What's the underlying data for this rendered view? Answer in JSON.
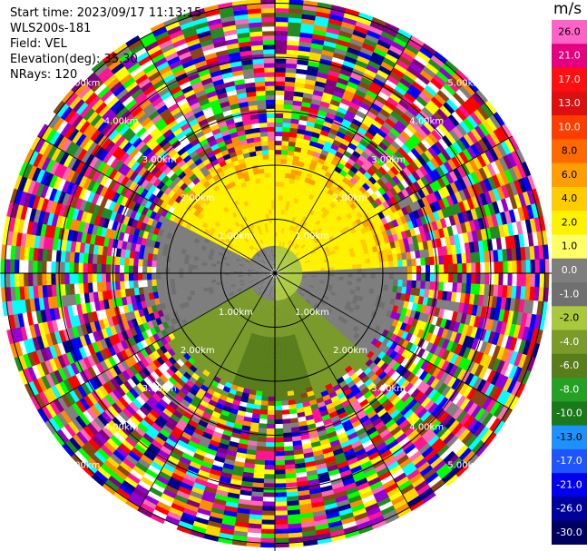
{
  "header": {
    "start_time": "Start time: 2023/09/17 11:13:15",
    "instrument": "WLS200s-181",
    "field": "Field: VEL",
    "elevation": "Elevation(deg): 35.30",
    "nrays": "NRays: 120"
  },
  "chart_data": {
    "type": "heatmap",
    "projection": "polar-ppi",
    "field": "VEL",
    "unit": "m/s",
    "range_ring_labels": [
      "1.00km",
      "2.00km",
      "3.00km",
      "4.00km",
      "5.00km"
    ],
    "range_max_km": 5.2,
    "n_rays": 120,
    "colorbar": {
      "ticks": [
        "26.0",
        "21.0",
        "17.0",
        "13.0",
        "10.0",
        "8.0",
        "6.0",
        "4.0",
        "2.0",
        "1.0",
        "0.0",
        "-1.0",
        "-2.0",
        "-4.0",
        "-6.0",
        "-8.0",
        "-10.0",
        "-13.0",
        "-17.0",
        "-21.0",
        "-26.0",
        "-30.0"
      ],
      "colors": [
        "#ff63c8",
        "#e6007f",
        "#ff0f0f",
        "#dd1010",
        "#ff3d00",
        "#ff6a00",
        "#ff9e00",
        "#ffcc00",
        "#fff200",
        "#ffff66",
        "#7e7e7e",
        "#707070",
        "#a9c83c",
        "#7a9a2a",
        "#5a7d1c",
        "#24a024",
        "#1a7a1a",
        "#1e90ff",
        "#1e55ff",
        "#0000ee",
        "#00009a",
        "#000060"
      ]
    },
    "clean_max_km": 2.15,
    "noise_palette": [
      "#ff1493",
      "#ff0000",
      "#0000ff",
      "#00ff00",
      "#ffff00",
      "#ff8c00",
      "#800080",
      "#00ffff",
      "#ffffff",
      "#ff69b4",
      "#228b22",
      "#00008b",
      "#808080",
      "#ffd700",
      "#8b4513",
      "#9400d3"
    ]
  }
}
